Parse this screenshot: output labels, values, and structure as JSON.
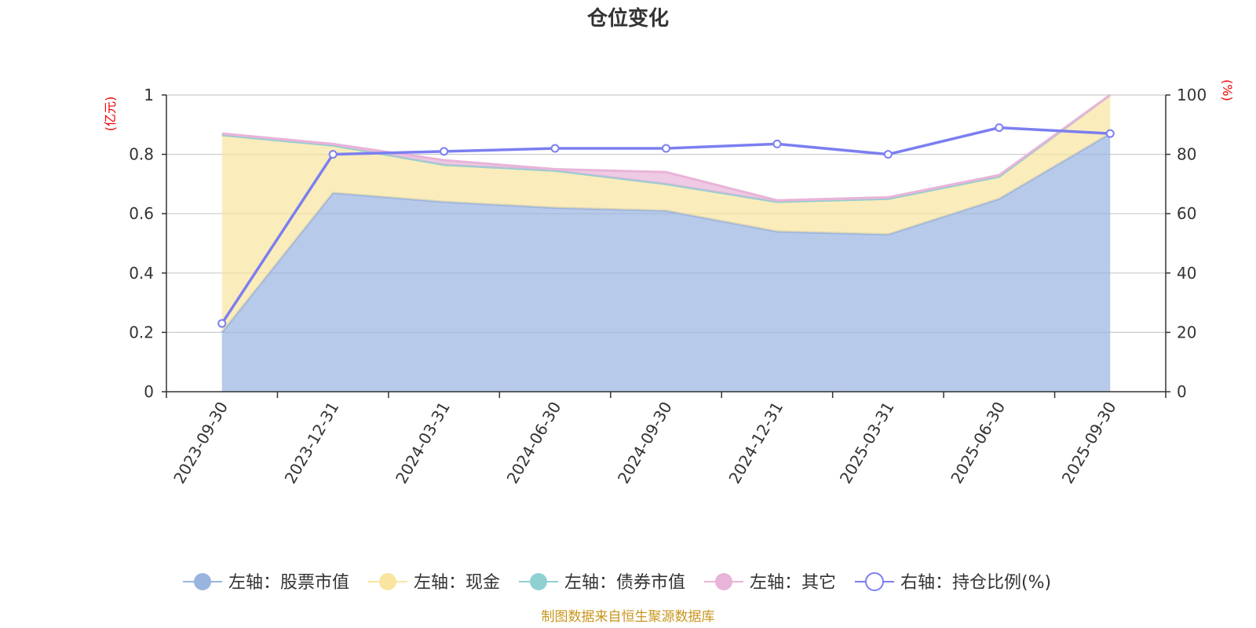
{
  "chart_data": {
    "type": "area",
    "title": "仓位变化",
    "categories": [
      "2023-09-30",
      "2023-12-31",
      "2024-03-31",
      "2024-06-30",
      "2024-09-30",
      "2024-12-31",
      "2025-03-31",
      "2025-06-30",
      "2025-09-30"
    ],
    "left_axis": {
      "unit": "(亿元)",
      "range": [
        0,
        1
      ],
      "ticks": [
        "0",
        "0.2",
        "0.4",
        "0.6",
        "0.8",
        "1"
      ]
    },
    "right_axis": {
      "unit": "(%)",
      "range": [
        0,
        100
      ],
      "ticks": [
        "0",
        "20",
        "40",
        "60",
        "80",
        "100"
      ]
    },
    "grid": true,
    "stacked": true,
    "series": [
      {
        "name": "左轴：股票市值",
        "axis": "left",
        "type": "area",
        "color": "#9ab4e0",
        "values": [
          0.2,
          0.67,
          0.64,
          0.62,
          0.61,
          0.54,
          0.53,
          0.65,
          0.87
        ]
      },
      {
        "name": "左轴：现金",
        "axis": "left",
        "type": "area",
        "color": "#f9e4a0",
        "values": [
          0.665,
          0.16,
          0.125,
          0.125,
          0.09,
          0.1,
          0.12,
          0.075,
          0.13
        ]
      },
      {
        "name": "左轴：债券市值",
        "axis": "left",
        "type": "area",
        "color": "#8fd0d2",
        "values": [
          0,
          0,
          0,
          0,
          0,
          0,
          0,
          0,
          0
        ]
      },
      {
        "name": "左轴：其它",
        "axis": "left",
        "type": "area",
        "color": "#e8b4d8",
        "values": [
          0.005,
          0.005,
          0.015,
          0.005,
          0.04,
          0.005,
          0.005,
          0.005,
          0.0
        ]
      },
      {
        "name": "右轴：持仓比例(%)",
        "axis": "right",
        "type": "line",
        "color": "#7b7ff0",
        "values": [
          23,
          80,
          81,
          82,
          82,
          83.5,
          80,
          89,
          87
        ]
      }
    ],
    "legend_position": "bottom",
    "source": "制图数据来自恒生聚源数据库"
  }
}
